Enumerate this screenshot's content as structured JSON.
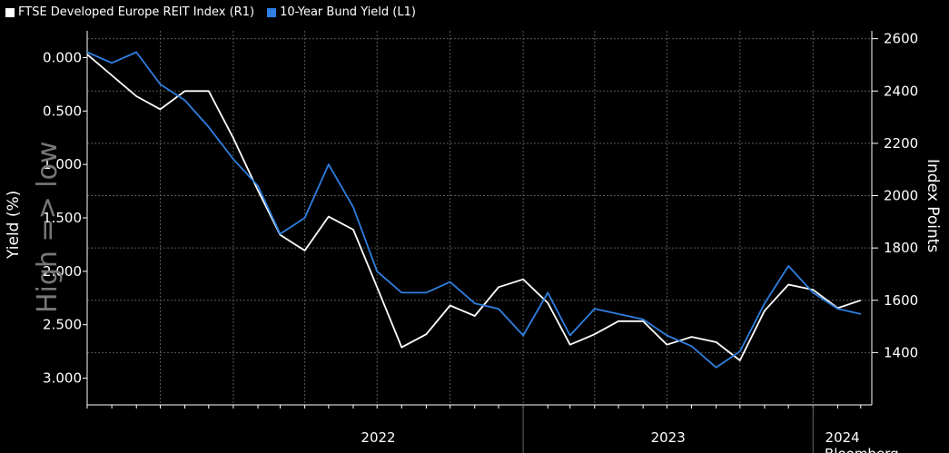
{
  "legend": {
    "reit_label": "FTSE Developed Europe REIT Index (R1)",
    "bund_label": "10-Year Bund Yield (L1)"
  },
  "colors": {
    "reit": "#ffffff",
    "bund": "#2f7fe0",
    "grid": "#5a5a5a",
    "background": "#000000"
  },
  "watermark": "High => low",
  "source": "Bloomberg",
  "chart_data": {
    "type": "line",
    "xlabel": "",
    "x_tick_labels": [
      "2022",
      "2023",
      "2024"
    ],
    "left_axis": {
      "label": "Yield (%)",
      "ticks": [
        "0.000",
        "0.500",
        "1.000",
        "1.500",
        "2.000",
        "2.500",
        "3.000"
      ],
      "range": [
        -0.25,
        3.25
      ],
      "inverted": true
    },
    "right_axis": {
      "label": "Index Points",
      "ticks": [
        "1400",
        "1600",
        "1800",
        "2000",
        "2200",
        "2400",
        "2600"
      ],
      "range": [
        1200,
        2630
      ]
    },
    "grid": true,
    "legend_position": "top-left",
    "series": [
      {
        "name": "FTSE Developed Europe REIT Index (R1)",
        "axis": "right",
        "x": [
          "2021-07",
          "2021-08",
          "2021-09",
          "2021-10",
          "2021-11",
          "2021-12",
          "2022-01",
          "2022-02",
          "2022-03",
          "2022-04",
          "2022-05",
          "2022-06",
          "2022-07",
          "2022-08",
          "2022-09",
          "2022-10",
          "2022-11",
          "2022-12",
          "2023-01",
          "2023-02",
          "2023-03",
          "2023-04",
          "2023-05",
          "2023-06",
          "2023-07",
          "2023-08",
          "2023-09",
          "2023-10",
          "2023-11",
          "2023-12",
          "2024-01",
          "2024-02",
          "2024-03"
        ],
        "values": [
          2540,
          2460,
          2380,
          2330,
          2400,
          2400,
          2220,
          2020,
          1850,
          1790,
          1920,
          1870,
          1650,
          1420,
          1470,
          1580,
          1540,
          1650,
          1680,
          1590,
          1430,
          1470,
          1520,
          1520,
          1430,
          1460,
          1440,
          1370,
          1560,
          1660,
          1640,
          1570,
          1600
        ]
      },
      {
        "name": "10-Year Bund Yield (L1)",
        "axis": "left",
        "x": [
          "2021-07",
          "2021-08",
          "2021-09",
          "2021-10",
          "2021-11",
          "2021-12",
          "2022-01",
          "2022-02",
          "2022-03",
          "2022-04",
          "2022-05",
          "2022-06",
          "2022-07",
          "2022-08",
          "2022-09",
          "2022-10",
          "2022-11",
          "2022-12",
          "2023-01",
          "2023-02",
          "2023-03",
          "2023-04",
          "2023-05",
          "2023-06",
          "2023-07",
          "2023-08",
          "2023-09",
          "2023-10",
          "2023-11",
          "2023-12",
          "2024-01",
          "2024-02",
          "2024-03"
        ],
        "values": [
          -0.05,
          0.05,
          -0.05,
          0.25,
          0.4,
          0.65,
          0.95,
          1.2,
          1.65,
          1.5,
          1.0,
          1.4,
          2.0,
          2.2,
          2.2,
          2.1,
          2.3,
          2.35,
          2.6,
          2.2,
          2.6,
          2.35,
          2.4,
          2.45,
          2.6,
          2.7,
          2.9,
          2.75,
          2.3,
          1.95,
          2.2,
          2.35,
          2.4
        ]
      }
    ]
  }
}
